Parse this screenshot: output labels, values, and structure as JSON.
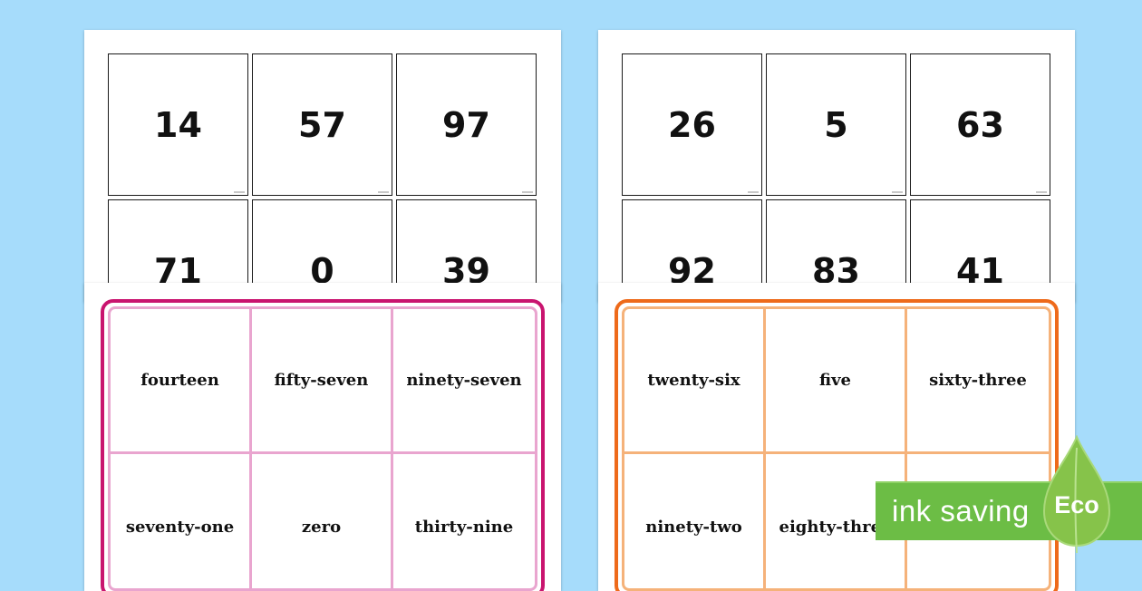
{
  "left_numbers": [
    "14",
    "57",
    "97",
    "71",
    "0",
    "39"
  ],
  "right_numbers": [
    "26",
    "5",
    "63",
    "92",
    "83",
    "41"
  ],
  "left_words": [
    "fourteen",
    "fifty-seven",
    "ninety-seven",
    "seventy-one",
    "zero",
    "thirty-nine"
  ],
  "right_words": [
    "twenty-six",
    "five",
    "sixty-three",
    "ninety-two",
    "eighty-three",
    ""
  ],
  "colors": {
    "background": "#a6dcfb",
    "left_frame": "#c9146f",
    "left_lines": "#e9a5cf",
    "right_frame": "#ee6a1a",
    "right_lines": "#f5b27a",
    "eco_green": "#6cbd45"
  },
  "badge": {
    "label": "ink saving",
    "eco": "Eco"
  }
}
